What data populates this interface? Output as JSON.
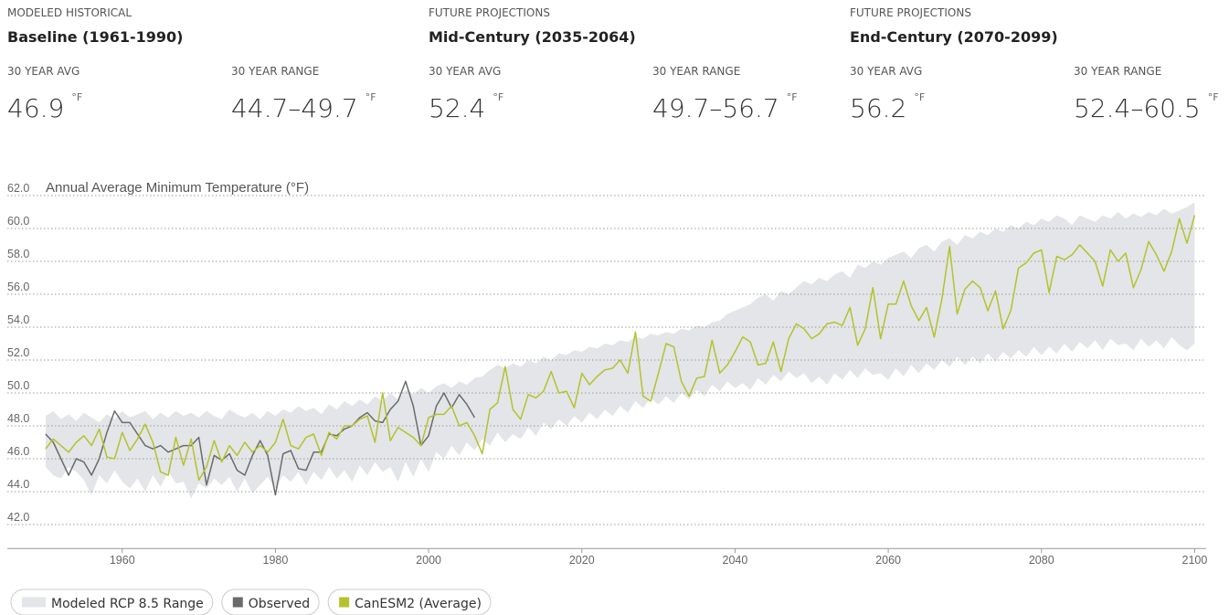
{
  "panels": [
    {
      "kicker": "MODELED HISTORICAL",
      "title": "Baseline (1961-1990)",
      "stats": [
        {
          "label": "30 YEAR AVG",
          "value": "46.9",
          "unit": "°F"
        },
        {
          "label": "30 YEAR RANGE",
          "value": "44.7–49.7",
          "unit": "°F"
        }
      ]
    },
    {
      "kicker": "FUTURE PROJECTIONS",
      "title": "Mid-Century (2035-2064)",
      "stats": [
        {
          "label": "30 YEAR AVG",
          "value": "52.4",
          "unit": "°F"
        },
        {
          "label": "30 YEAR RANGE",
          "value": "49.7–56.7",
          "unit": "°F"
        }
      ]
    },
    {
      "kicker": "FUTURE PROJECTIONS",
      "title": "End-Century (2070-2099)",
      "stats": [
        {
          "label": "30 YEAR AVG",
          "value": "56.2",
          "unit": "°F"
        },
        {
          "label": "30 YEAR RANGE",
          "value": "52.4–60.5",
          "unit": "°F"
        }
      ]
    }
  ],
  "chart_data": {
    "type": "line",
    "title": "Annual Average Minimum Temperature (°F)",
    "xlim": [
      1945,
      2101.5
    ],
    "xticks": [
      1960,
      1980,
      2000,
      2020,
      2040,
      2060,
      2080,
      2100
    ],
    "ylim": [
      40.6,
      62.5
    ],
    "yticks": [
      {
        "value": 42,
        "label": "42.0"
      },
      {
        "value": 44,
        "label": "44.0"
      },
      {
        "value": 46,
        "label": "46.0"
      },
      {
        "value": 48,
        "label": "48.0"
      },
      {
        "value": 50,
        "label": "50.0"
      },
      {
        "value": 52,
        "label": "52.0"
      },
      {
        "value": 54,
        "label": "54.0"
      },
      {
        "value": 56,
        "label": "56.0"
      },
      {
        "value": 58,
        "label": "58.0"
      },
      {
        "value": 60,
        "label": "60.0"
      },
      {
        "value": 62,
        "label": "62.0"
      }
    ],
    "grid": true,
    "x": [
      1950,
      1951,
      1952,
      1953,
      1954,
      1955,
      1956,
      1957,
      1958,
      1959,
      1960,
      1961,
      1962,
      1963,
      1964,
      1965,
      1966,
      1967,
      1968,
      1969,
      1970,
      1971,
      1972,
      1973,
      1974,
      1975,
      1976,
      1977,
      1978,
      1979,
      1980,
      1981,
      1982,
      1983,
      1984,
      1985,
      1986,
      1987,
      1988,
      1989,
      1990,
      1991,
      1992,
      1993,
      1994,
      1995,
      1996,
      1997,
      1998,
      1999,
      2000,
      2001,
      2002,
      2003,
      2004,
      2005,
      2006,
      2007,
      2008,
      2009,
      2010,
      2011,
      2012,
      2013,
      2014,
      2015,
      2016,
      2017,
      2018,
      2019,
      2020,
      2021,
      2022,
      2023,
      2024,
      2025,
      2026,
      2027,
      2028,
      2029,
      2030,
      2031,
      2032,
      2033,
      2034,
      2035,
      2036,
      2037,
      2038,
      2039,
      2040,
      2041,
      2042,
      2043,
      2044,
      2045,
      2046,
      2047,
      2048,
      2049,
      2050,
      2051,
      2052,
      2053,
      2054,
      2055,
      2056,
      2057,
      2058,
      2059,
      2060,
      2061,
      2062,
      2063,
      2064,
      2065,
      2066,
      2067,
      2068,
      2069,
      2070,
      2071,
      2072,
      2073,
      2074,
      2075,
      2076,
      2077,
      2078,
      2079,
      2080,
      2081,
      2082,
      2083,
      2084,
      2085,
      2086,
      2087,
      2088,
      2089,
      2090,
      2091,
      2092,
      2093,
      2094,
      2095,
      2096,
      2097,
      2098,
      2099,
      2100
    ],
    "series": [
      {
        "name": "Modeled RCP 8.5 Range",
        "kind": "band",
        "color": "#e3e5e8",
        "lower": [
          45.5,
          45.0,
          44.8,
          45.5,
          45.2,
          44.7,
          43.8,
          45.0,
          44.5,
          45.3,
          44.6,
          44.2,
          44.8,
          44.0,
          45.0,
          44.3,
          45.2,
          44.5,
          44.6,
          43.6,
          44.5,
          44.2,
          44.8,
          44.4,
          44.9,
          44.0,
          44.8,
          43.9,
          44.4,
          44.9,
          44.2,
          45.0,
          44.6,
          45.2,
          44.4,
          45.2,
          44.7,
          45.5,
          44.8,
          45.3,
          44.6,
          45.6,
          45.0,
          45.8,
          45.2,
          45.5,
          44.6,
          45.8,
          44.9,
          46.0,
          45.2,
          46.4,
          46.0,
          46.8,
          46.2,
          47.0,
          46.5,
          47.2,
          46.8,
          47.6,
          47.0,
          47.5,
          47.2,
          47.9,
          47.4,
          48.2,
          47.8,
          48.4,
          48.0,
          48.6,
          48.2,
          48.8,
          48.4,
          49.0,
          48.6,
          49.2,
          48.8,
          49.5,
          49.1,
          49.7,
          49.3,
          49.8,
          49.4,
          50.0,
          49.6,
          50.2,
          49.8,
          50.5,
          50.1,
          50.7,
          50.3,
          50.6,
          50.2,
          50.9,
          50.5,
          51.1,
          50.7,
          51.3,
          50.9,
          51.2,
          50.6,
          51.0,
          50.5,
          51.2,
          50.8,
          51.4,
          50.9,
          51.5,
          51.1,
          51.2,
          50.8,
          51.5,
          51.0,
          51.7,
          51.2,
          51.8,
          51.4,
          52.0,
          51.6,
          52.2,
          51.7,
          52.2,
          51.8,
          52.4,
          51.9,
          52.5,
          52.1,
          52.6,
          52.2,
          52.8,
          52.3,
          52.8,
          52.4,
          53.0,
          52.5,
          53.1,
          52.7,
          53.2,
          52.6,
          53.3,
          52.9,
          53.0,
          52.6,
          53.3,
          52.8,
          53.2,
          52.7,
          53.4,
          52.9,
          52.6,
          53.0
        ],
        "upper": [
          48.6,
          48.9,
          48.4,
          48.7,
          48.3,
          48.8,
          48.5,
          48.2,
          48.7,
          48.4,
          48.9,
          48.5,
          48.7,
          48.9,
          48.4,
          48.8,
          48.5,
          48.9,
          48.6,
          48.8,
          48.5,
          48.9,
          48.6,
          48.4,
          49.0,
          48.7,
          48.5,
          48.8,
          48.4,
          48.9,
          48.6,
          49.0,
          48.8,
          49.2,
          48.9,
          49.1,
          48.7,
          49.3,
          49.0,
          49.5,
          49.2,
          49.6,
          49.3,
          49.8,
          49.5,
          50.0,
          49.6,
          50.2,
          49.9,
          50.3,
          50.0,
          50.4,
          50.6,
          50.3,
          50.7,
          50.5,
          50.9,
          51.0,
          51.4,
          51.7,
          51.5,
          51.8,
          51.6,
          52.0,
          51.8,
          52.2,
          52.0,
          52.4,
          52.3,
          52.6,
          52.5,
          52.8,
          52.7,
          53.0,
          52.9,
          53.2,
          53.1,
          53.4,
          53.3,
          53.6,
          53.5,
          53.7,
          53.6,
          53.9,
          53.8,
          54.1,
          54.0,
          54.3,
          54.4,
          54.8,
          55.0,
          55.2,
          55.4,
          55.8,
          56.0,
          55.6,
          56.2,
          56.0,
          56.4,
          56.8,
          56.6,
          57.0,
          56.8,
          57.2,
          57.4,
          57.0,
          57.8,
          57.6,
          58.0,
          57.8,
          58.2,
          58.4,
          58.6,
          58.2,
          58.8,
          59.0,
          58.6,
          59.2,
          59.4,
          59.0,
          59.6,
          59.4,
          59.8,
          59.6,
          60.0,
          59.8,
          60.2,
          60.0,
          60.4,
          60.2,
          60.6,
          60.4,
          60.8,
          60.6,
          60.2,
          60.8,
          60.6,
          60.4,
          60.8,
          60.6,
          61.0,
          60.6,
          60.9,
          60.7,
          61.0,
          60.8,
          61.2,
          60.9,
          61.1,
          61.3,
          61.6
        ]
      },
      {
        "name": "Observed",
        "color": "#6b6b6b",
        "x": [
          1950,
          1951,
          1952,
          1953,
          1954,
          1955,
          1956,
          1957,
          1958,
          1959,
          1960,
          1961,
          1962,
          1963,
          1964,
          1965,
          1966,
          1967,
          1968,
          1969,
          1970,
          1971,
          1972,
          1973,
          1974,
          1975,
          1976,
          1977,
          1978,
          1979,
          1980,
          1981,
          1982,
          1983,
          1984,
          1985,
          1986,
          1987,
          1988,
          1989,
          1990,
          1991,
          1992,
          1993,
          1994,
          1995,
          1996,
          1997,
          1998,
          1999,
          2000,
          2001,
          2002,
          2003,
          2004,
          2005,
          2006
        ],
        "values": [
          47.5,
          47.0,
          46.0,
          45.0,
          46.0,
          45.8,
          45.0,
          46.0,
          47.6,
          48.9,
          48.2,
          48.2,
          47.5,
          46.8,
          46.6,
          46.8,
          46.4,
          46.6,
          46.8,
          46.8,
          47.3,
          44.4,
          46.2,
          45.9,
          46.3,
          45.3,
          45.0,
          46.2,
          47.1,
          46.2,
          43.8,
          46.3,
          46.5,
          45.4,
          45.3,
          46.4,
          46.4,
          47.5,
          47.4,
          47.8,
          48.0,
          48.5,
          48.8,
          48.3,
          48.2,
          49.0,
          49.5,
          50.7,
          49.2,
          46.8,
          47.4,
          49.2,
          50.0,
          49.1,
          49.9,
          49.3,
          48.5
        ]
      },
      {
        "name": "CanESM2 (Average)",
        "color": "#b5c22c",
        "values": [
          46.6,
          47.2,
          46.8,
          46.4,
          47.0,
          47.4,
          46.8,
          47.8,
          46.1,
          46.0,
          47.6,
          46.5,
          47.2,
          48.1,
          47.0,
          45.2,
          45.0,
          47.3,
          45.6,
          47.2,
          44.7,
          45.5,
          47.1,
          45.8,
          46.8,
          46.2,
          47.0,
          46.4,
          46.8,
          46.4,
          47.0,
          48.4,
          46.8,
          46.6,
          47.3,
          47.5,
          46.2,
          47.6,
          47.2,
          48.0,
          48.0,
          48.4,
          48.6,
          47.0,
          50.0,
          47.1,
          47.9,
          47.6,
          47.3,
          46.8,
          48.5,
          48.7,
          48.7,
          49.2,
          48.0,
          48.2,
          47.4,
          46.3,
          49.0,
          49.4,
          51.6,
          49.0,
          48.4,
          49.9,
          49.7,
          50.1,
          51.3,
          50.0,
          50.1,
          49.1,
          51.2,
          50.5,
          51.0,
          51.4,
          51.5,
          52.0,
          51.2,
          53.7,
          49.8,
          49.5,
          51.2,
          53.0,
          52.8,
          50.7,
          49.8,
          50.9,
          51.0,
          53.2,
          51.2,
          51.7,
          52.5,
          53.4,
          53.1,
          51.7,
          51.8,
          53.1,
          51.3,
          53.3,
          54.2,
          53.9,
          53.3,
          53.6,
          54.2,
          54.3,
          54.1,
          55.2,
          52.9,
          53.9,
          56.4,
          53.3,
          55.4,
          55.4,
          56.8,
          55.3,
          54.4,
          55.2,
          53.4,
          55.7,
          58.9,
          54.8,
          56.3,
          56.8,
          56.4,
          55.0,
          56.2,
          53.9,
          55.0,
          57.6,
          57.9,
          58.5,
          58.7,
          56.1,
          58.3,
          58.1,
          58.4,
          59.0,
          58.5,
          58.0,
          56.5,
          58.7,
          58.0,
          58.5,
          56.4,
          57.5,
          59.2,
          58.4,
          57.4,
          58.6,
          60.6,
          59.1,
          60.8
        ]
      }
    ]
  }
}
